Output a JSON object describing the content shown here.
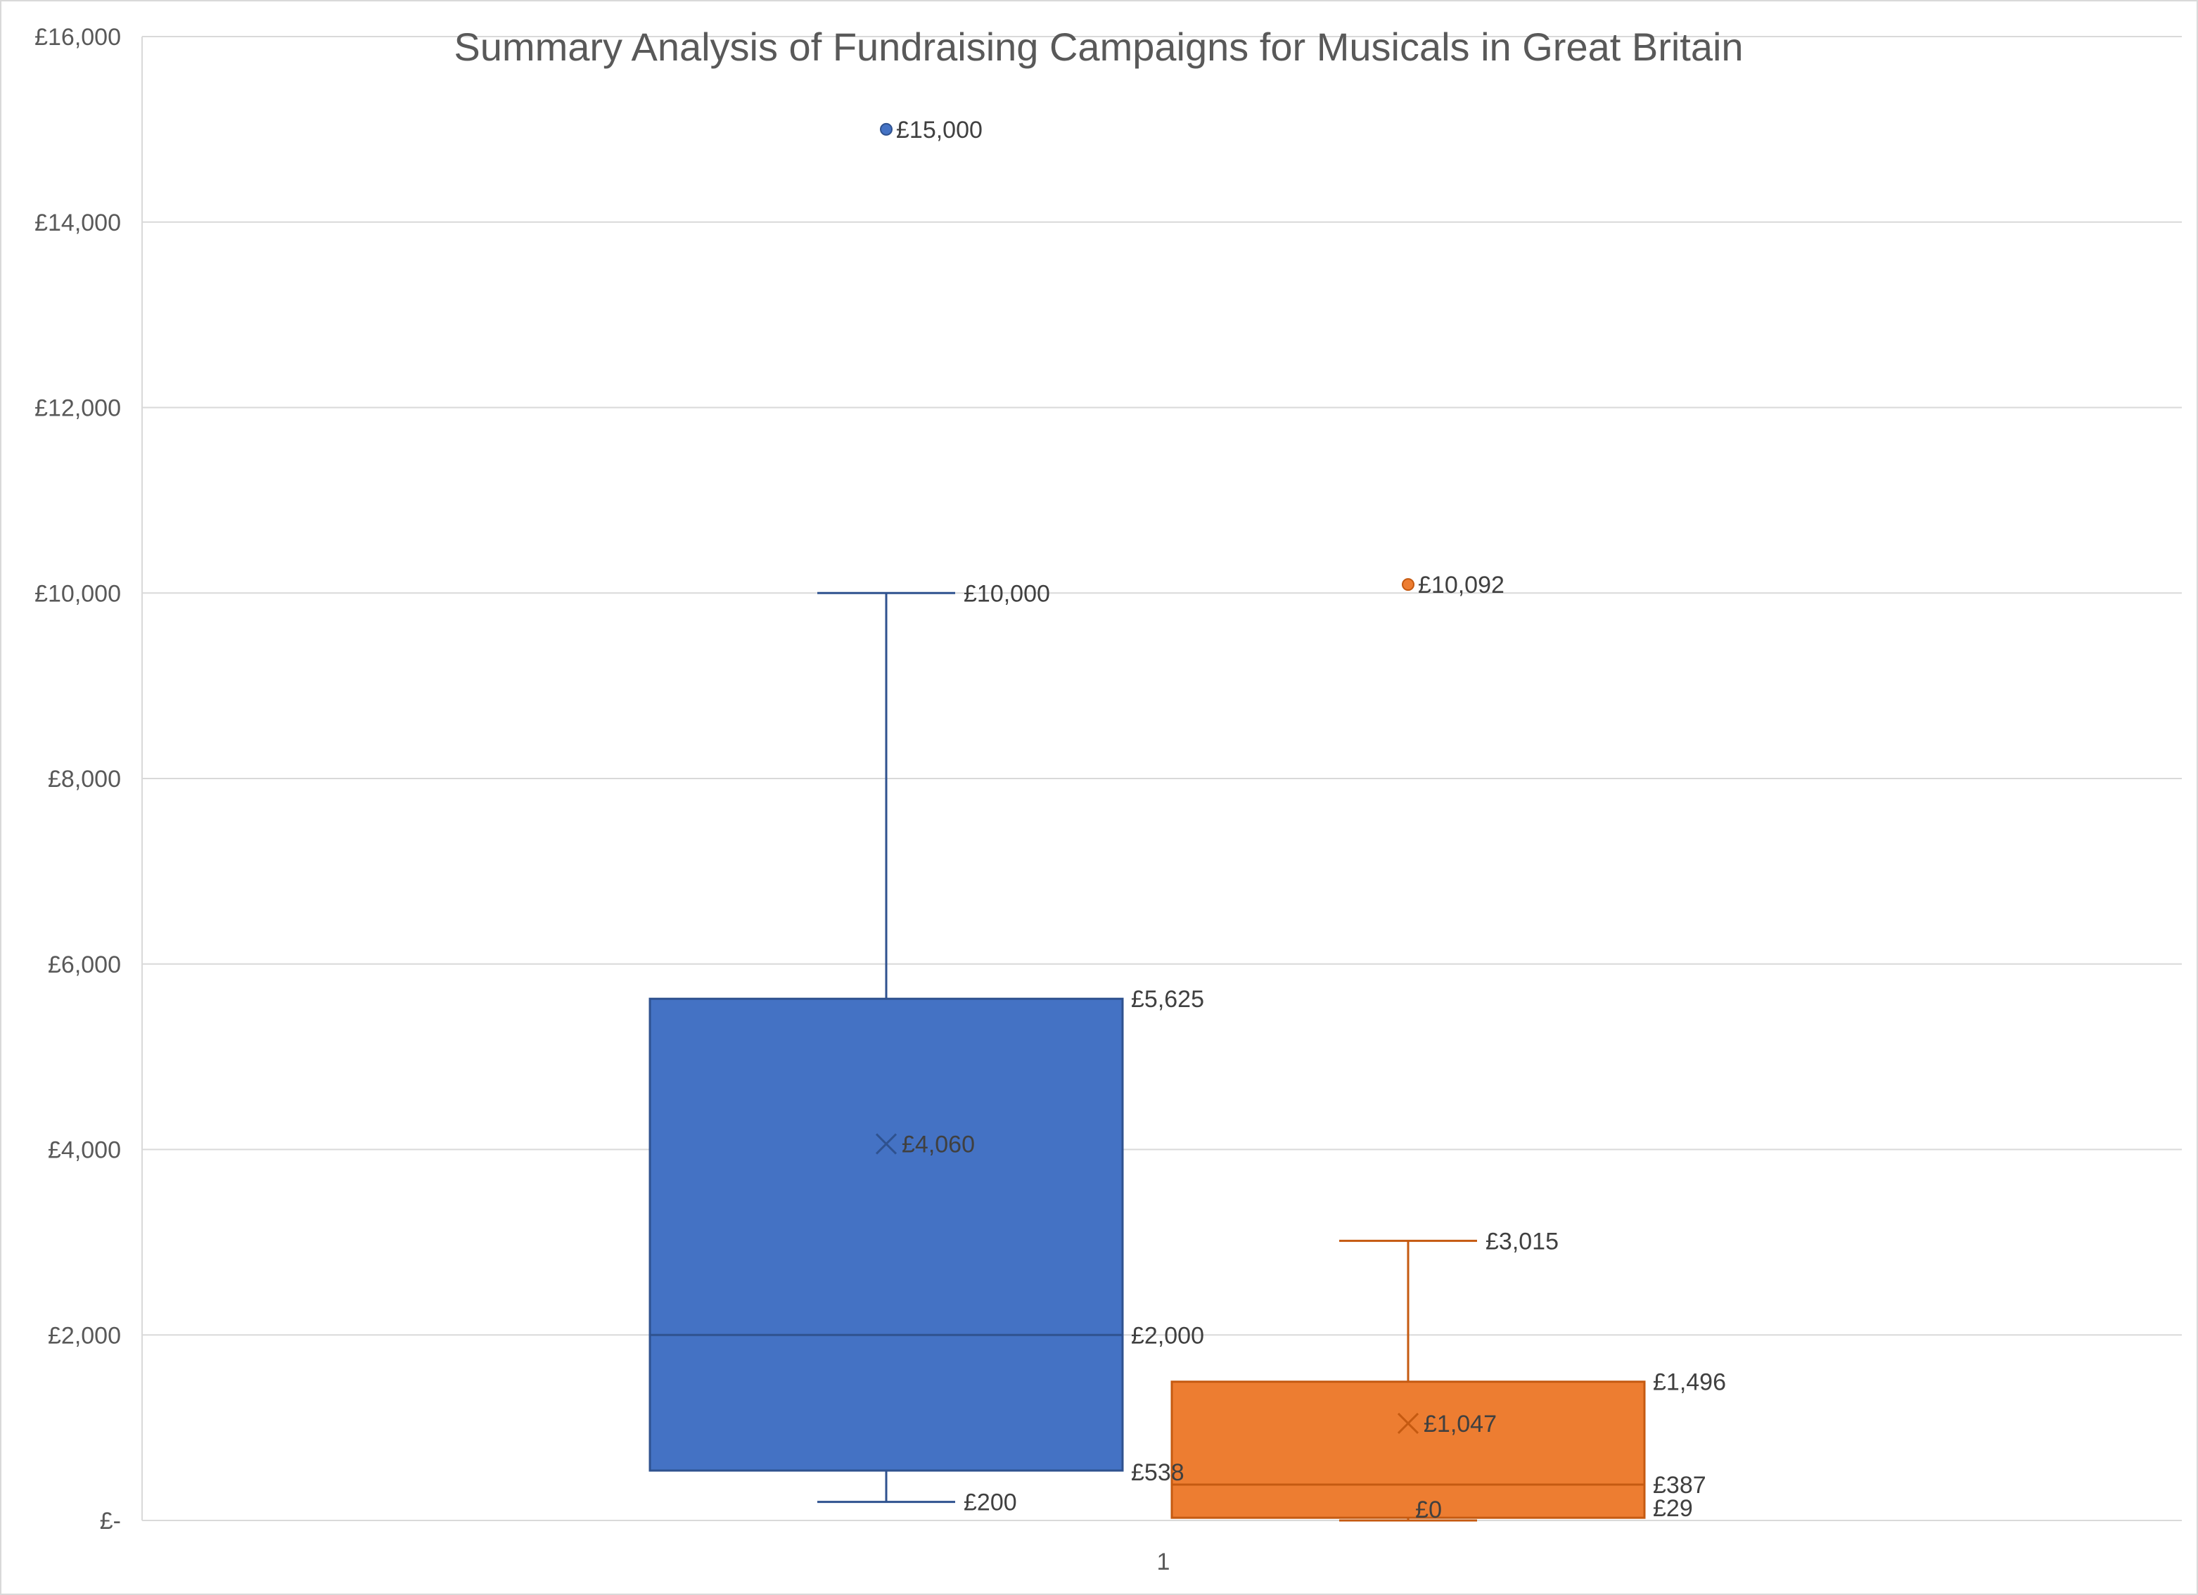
{
  "chart_data": {
    "type": "box",
    "title": "Summary Analysis of Fundraising Campaigns for Musicals in Great Britain",
    "xlabel": "",
    "ylabel": "",
    "categories": [
      "1"
    ],
    "ylim": [
      0,
      16000
    ],
    "y_ticks": [
      0,
      2000,
      4000,
      6000,
      8000,
      10000,
      12000,
      14000,
      16000
    ],
    "y_tick_labels": [
      "£-",
      "£2,000",
      "£4,000",
      "£6,000",
      "£8,000",
      "£10,000",
      "£12,000",
      "£14,000",
      "£16,000"
    ],
    "grid": true,
    "legend": "none",
    "series": [
      {
        "color": "#4472C4",
        "stroke": "#2F528F",
        "whisker_low": 200,
        "q1": 538,
        "median": 2000,
        "q3": 5625,
        "whisker_high": 10000,
        "mean": 4060,
        "outliers": [
          15000
        ],
        "labels": {
          "whisker_low": "£200",
          "q1": "£538",
          "median": "£2,000",
          "q3": "£5,625",
          "whisker_high": "£10,000",
          "mean": "£4,060",
          "outliers": [
            "£15,000"
          ]
        }
      },
      {
        "color": "#ED7D31",
        "stroke": "#C55A11",
        "whisker_low": 0,
        "q1": 29,
        "median": 387,
        "q3": 1496,
        "whisker_high": 3015,
        "mean": 1047,
        "outliers": [
          10092
        ],
        "labels": {
          "whisker_low": "£0",
          "q1": "£29",
          "median": "£387",
          "q3": "£1,496",
          "whisker_high": "£3,015",
          "mean": "£1,047",
          "outliers": [
            "£10,092"
          ]
        }
      }
    ]
  }
}
